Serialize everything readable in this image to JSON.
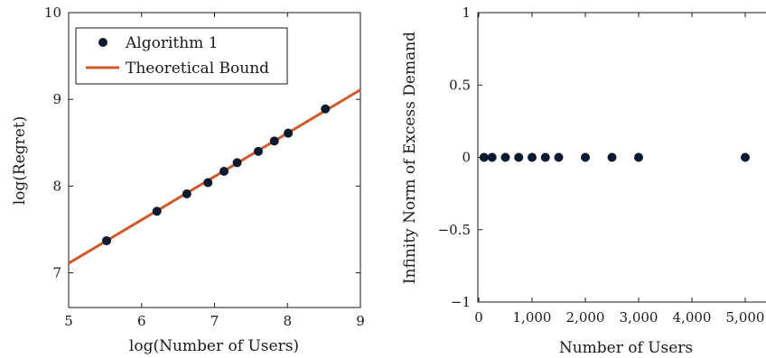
{
  "chart_data": [
    {
      "type": "scatter",
      "title": "",
      "xlabel": "log(Number of Users)",
      "ylabel": "log(Regret)",
      "xlim": [
        5,
        9
      ],
      "ylim": [
        6.6,
        10
      ],
      "xticks": [
        "5",
        "6",
        "7",
        "8",
        "9"
      ],
      "yticks": [
        "7",
        "8",
        "9",
        "10"
      ],
      "grid": false,
      "legend_position": "top-left",
      "series": [
        {
          "name": "Algorithm 1",
          "kind": "scatter",
          "color": "#0b1a2e",
          "x": [
            5.52,
            6.21,
            6.62,
            6.91,
            7.13,
            7.31,
            7.6,
            7.82,
            8.01,
            8.52
          ],
          "y": [
            7.37,
            7.71,
            7.91,
            8.04,
            8.17,
            8.27,
            8.4,
            8.52,
            8.61,
            8.89
          ]
        },
        {
          "name": "Theoretical Bound",
          "kind": "line",
          "color": "#cf5a2e",
          "x": [
            5,
            9
          ],
          "y": [
            7.11,
            9.11
          ]
        }
      ]
    },
    {
      "type": "scatter",
      "title": "",
      "xlabel": "Number of Users",
      "ylabel": "Infinity Norm of Excess Demand",
      "xlim": [
        0,
        5000
      ],
      "ylim": [
        -1,
        1
      ],
      "xticks": [
        "0",
        "1,000",
        "2,000",
        "3,000",
        "4,000",
        "5,000"
      ],
      "yticks": [
        "−1",
        "−0.5",
        "0",
        "0.5",
        "1"
      ],
      "grid": false,
      "series": [
        {
          "kind": "scatter",
          "color": "#0b1a2e",
          "x": [
            100,
            250,
            500,
            750,
            1000,
            1250,
            1500,
            2000,
            2500,
            3000,
            5000
          ],
          "y": [
            0,
            0,
            0,
            0,
            0,
            0,
            0,
            0,
            0,
            0,
            0
          ]
        }
      ]
    }
  ]
}
